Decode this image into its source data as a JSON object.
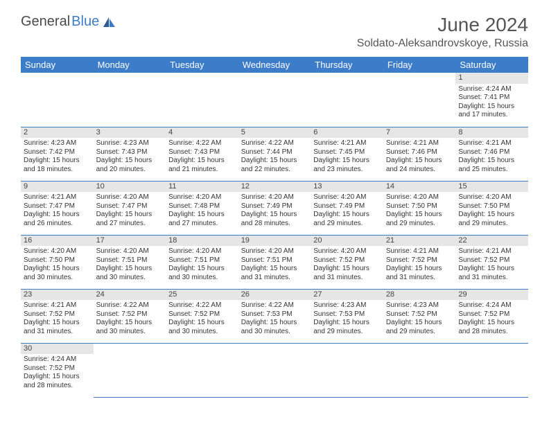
{
  "logo": {
    "part1": "General",
    "part2": "Blue"
  },
  "title": "June 2024",
  "location": "Soldato-Aleksandrovskoye, Russia",
  "header_bg": "#3d7cc9",
  "day_headers": [
    "Sunday",
    "Monday",
    "Tuesday",
    "Wednesday",
    "Thursday",
    "Friday",
    "Saturday"
  ],
  "weeks": [
    [
      null,
      null,
      null,
      null,
      null,
      null,
      {
        "n": "1",
        "sunrise": "Sunrise: 4:24 AM",
        "sunset": "Sunset: 7:41 PM",
        "day1": "Daylight: 15 hours",
        "day2": "and 17 minutes."
      }
    ],
    [
      {
        "n": "2",
        "sunrise": "Sunrise: 4:23 AM",
        "sunset": "Sunset: 7:42 PM",
        "day1": "Daylight: 15 hours",
        "day2": "and 18 minutes."
      },
      {
        "n": "3",
        "sunrise": "Sunrise: 4:23 AM",
        "sunset": "Sunset: 7:43 PM",
        "day1": "Daylight: 15 hours",
        "day2": "and 20 minutes."
      },
      {
        "n": "4",
        "sunrise": "Sunrise: 4:22 AM",
        "sunset": "Sunset: 7:43 PM",
        "day1": "Daylight: 15 hours",
        "day2": "and 21 minutes."
      },
      {
        "n": "5",
        "sunrise": "Sunrise: 4:22 AM",
        "sunset": "Sunset: 7:44 PM",
        "day1": "Daylight: 15 hours",
        "day2": "and 22 minutes."
      },
      {
        "n": "6",
        "sunrise": "Sunrise: 4:21 AM",
        "sunset": "Sunset: 7:45 PM",
        "day1": "Daylight: 15 hours",
        "day2": "and 23 minutes."
      },
      {
        "n": "7",
        "sunrise": "Sunrise: 4:21 AM",
        "sunset": "Sunset: 7:46 PM",
        "day1": "Daylight: 15 hours",
        "day2": "and 24 minutes."
      },
      {
        "n": "8",
        "sunrise": "Sunrise: 4:21 AM",
        "sunset": "Sunset: 7:46 PM",
        "day1": "Daylight: 15 hours",
        "day2": "and 25 minutes."
      }
    ],
    [
      {
        "n": "9",
        "sunrise": "Sunrise: 4:21 AM",
        "sunset": "Sunset: 7:47 PM",
        "day1": "Daylight: 15 hours",
        "day2": "and 26 minutes."
      },
      {
        "n": "10",
        "sunrise": "Sunrise: 4:20 AM",
        "sunset": "Sunset: 7:47 PM",
        "day1": "Daylight: 15 hours",
        "day2": "and 27 minutes."
      },
      {
        "n": "11",
        "sunrise": "Sunrise: 4:20 AM",
        "sunset": "Sunset: 7:48 PM",
        "day1": "Daylight: 15 hours",
        "day2": "and 27 minutes."
      },
      {
        "n": "12",
        "sunrise": "Sunrise: 4:20 AM",
        "sunset": "Sunset: 7:49 PM",
        "day1": "Daylight: 15 hours",
        "day2": "and 28 minutes."
      },
      {
        "n": "13",
        "sunrise": "Sunrise: 4:20 AM",
        "sunset": "Sunset: 7:49 PM",
        "day1": "Daylight: 15 hours",
        "day2": "and 29 minutes."
      },
      {
        "n": "14",
        "sunrise": "Sunrise: 4:20 AM",
        "sunset": "Sunset: 7:50 PM",
        "day1": "Daylight: 15 hours",
        "day2": "and 29 minutes."
      },
      {
        "n": "15",
        "sunrise": "Sunrise: 4:20 AM",
        "sunset": "Sunset: 7:50 PM",
        "day1": "Daylight: 15 hours",
        "day2": "and 29 minutes."
      }
    ],
    [
      {
        "n": "16",
        "sunrise": "Sunrise: 4:20 AM",
        "sunset": "Sunset: 7:50 PM",
        "day1": "Daylight: 15 hours",
        "day2": "and 30 minutes."
      },
      {
        "n": "17",
        "sunrise": "Sunrise: 4:20 AM",
        "sunset": "Sunset: 7:51 PM",
        "day1": "Daylight: 15 hours",
        "day2": "and 30 minutes."
      },
      {
        "n": "18",
        "sunrise": "Sunrise: 4:20 AM",
        "sunset": "Sunset: 7:51 PM",
        "day1": "Daylight: 15 hours",
        "day2": "and 30 minutes."
      },
      {
        "n": "19",
        "sunrise": "Sunrise: 4:20 AM",
        "sunset": "Sunset: 7:51 PM",
        "day1": "Daylight: 15 hours",
        "day2": "and 31 minutes."
      },
      {
        "n": "20",
        "sunrise": "Sunrise: 4:20 AM",
        "sunset": "Sunset: 7:52 PM",
        "day1": "Daylight: 15 hours",
        "day2": "and 31 minutes."
      },
      {
        "n": "21",
        "sunrise": "Sunrise: 4:21 AM",
        "sunset": "Sunset: 7:52 PM",
        "day1": "Daylight: 15 hours",
        "day2": "and 31 minutes."
      },
      {
        "n": "22",
        "sunrise": "Sunrise: 4:21 AM",
        "sunset": "Sunset: 7:52 PM",
        "day1": "Daylight: 15 hours",
        "day2": "and 31 minutes."
      }
    ],
    [
      {
        "n": "23",
        "sunrise": "Sunrise: 4:21 AM",
        "sunset": "Sunset: 7:52 PM",
        "day1": "Daylight: 15 hours",
        "day2": "and 31 minutes."
      },
      {
        "n": "24",
        "sunrise": "Sunrise: 4:22 AM",
        "sunset": "Sunset: 7:52 PM",
        "day1": "Daylight: 15 hours",
        "day2": "and 30 minutes."
      },
      {
        "n": "25",
        "sunrise": "Sunrise: 4:22 AM",
        "sunset": "Sunset: 7:52 PM",
        "day1": "Daylight: 15 hours",
        "day2": "and 30 minutes."
      },
      {
        "n": "26",
        "sunrise": "Sunrise: 4:22 AM",
        "sunset": "Sunset: 7:53 PM",
        "day1": "Daylight: 15 hours",
        "day2": "and 30 minutes."
      },
      {
        "n": "27",
        "sunrise": "Sunrise: 4:23 AM",
        "sunset": "Sunset: 7:53 PM",
        "day1": "Daylight: 15 hours",
        "day2": "and 29 minutes."
      },
      {
        "n": "28",
        "sunrise": "Sunrise: 4:23 AM",
        "sunset": "Sunset: 7:52 PM",
        "day1": "Daylight: 15 hours",
        "day2": "and 29 minutes."
      },
      {
        "n": "29",
        "sunrise": "Sunrise: 4:24 AM",
        "sunset": "Sunset: 7:52 PM",
        "day1": "Daylight: 15 hours",
        "day2": "and 28 minutes."
      }
    ],
    [
      {
        "n": "30",
        "sunrise": "Sunrise: 4:24 AM",
        "sunset": "Sunset: 7:52 PM",
        "day1": "Daylight: 15 hours",
        "day2": "and 28 minutes."
      },
      null,
      null,
      null,
      null,
      null,
      null
    ]
  ]
}
